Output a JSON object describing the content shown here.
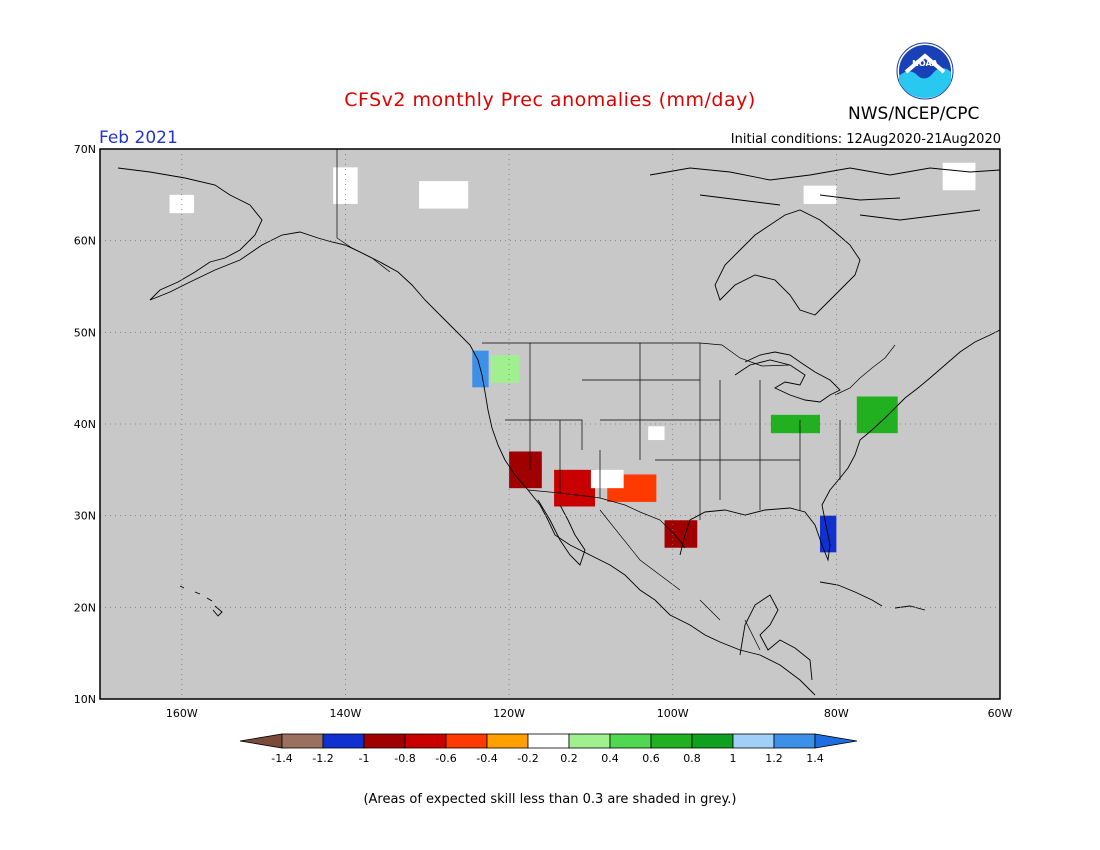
{
  "header": {
    "title": "CFSv2 monthly Prec anomalies (mm/day)",
    "month": "Feb 2021",
    "initial_conditions": "Initial conditions: 12Aug2020-21Aug2020",
    "agency": "NWS/NCEP/CPC",
    "logo_text": "NOAA"
  },
  "map": {
    "lat_labels": [
      "70N",
      "60N",
      "50N",
      "40N",
      "30N",
      "20N",
      "10N"
    ],
    "lon_labels": [
      "160W",
      "140W",
      "120W",
      "100W",
      "80W",
      "60W"
    ],
    "lat_range": [
      10,
      70
    ],
    "lon_range": [
      -170,
      -60
    ],
    "background": "#c8c8c8",
    "regions": [
      {
        "name": "Washington-Oregon coast wet",
        "level": 1.3,
        "lon": -123.5,
        "lat": 46,
        "w": 2,
        "h": 4
      },
      {
        "name": "Interior Northwest wet",
        "level": 0.4,
        "lon": -120.5,
        "lat": 46,
        "w": 3.5,
        "h": 3
      },
      {
        "name": "California dry",
        "level": -0.8,
        "lon": -118,
        "lat": 35,
        "w": 4,
        "h": 4
      },
      {
        "name": "Southwest dry",
        "level": -0.6,
        "lon": -112,
        "lat": 33,
        "w": 5,
        "h": 4
      },
      {
        "name": "Southern Plains dry",
        "level": -0.4,
        "lon": -105,
        "lat": 33,
        "w": 6,
        "h": 3
      },
      {
        "name": "Texas dry",
        "level": -0.8,
        "lon": -99,
        "lat": 28,
        "w": 4,
        "h": 3
      },
      {
        "name": "Florida dry",
        "level": -1.0,
        "lon": -81,
        "lat": 28,
        "w": 2,
        "h": 4
      },
      {
        "name": "Ohio Valley wet",
        "level": 0.8,
        "lon": -85,
        "lat": 40,
        "w": 6,
        "h": 2
      },
      {
        "name": "Northeast wet",
        "level": 0.8,
        "lon": -75,
        "lat": 41,
        "w": 5,
        "h": 4
      }
    ]
  },
  "colorbar": {
    "labels": [
      "-1.4",
      "-1.2",
      "-1",
      "-0.8",
      "-0.6",
      "-0.4",
      "-0.2",
      "0.2",
      "0.4",
      "0.6",
      "0.8",
      "1",
      "1.2",
      "1.4"
    ],
    "colors": [
      "#7a4b3a",
      "#9a7060",
      "#1030d0",
      "#a00000",
      "#c80000",
      "#ff3a00",
      "#ffa000",
      "#ffffff",
      "#a0f090",
      "#50d850",
      "#20b020",
      "#10a020",
      "#a0d0f8",
      "#3c90e8",
      "#1e6ee0"
    ]
  },
  "footnote": "(Areas of expected skill less than 0.3 are shaded in grey.)"
}
